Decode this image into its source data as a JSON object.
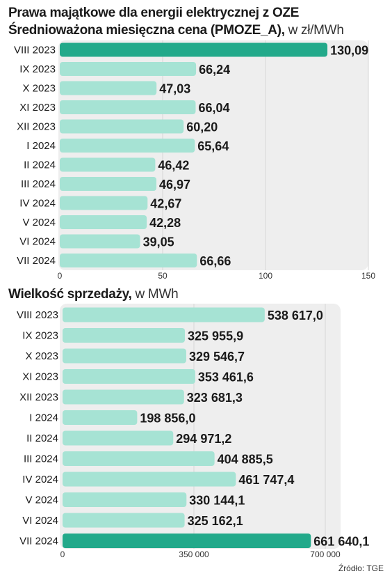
{
  "chart_data": [
    {
      "type": "bar",
      "orientation": "horizontal",
      "title": "Prawa majątkowe dla energii elektrycznej z OZE",
      "subtitle": "Średnioważona miesięczna cena (PMOZE_A),",
      "unit": "w  zł/MWh",
      "categories": [
        "VIII 2023",
        "IX 2023",
        "X 2023",
        "XI 2023",
        "XII 2023",
        "I 2024",
        "II 2024",
        "III 2024",
        "IV 2024",
        "V 2024",
        "VI 2024",
        "VII 2024"
      ],
      "values": [
        130.09,
        66.24,
        47.03,
        66.04,
        60.2,
        65.64,
        46.42,
        46.97,
        42.67,
        42.28,
        39.05,
        66.66
      ],
      "value_labels": [
        "130,09",
        "66,24",
        "47,03",
        "66,04",
        "60,20",
        "65,64",
        "46,42",
        "46,97",
        "42,67",
        "42,28",
        "39,05",
        "66,66"
      ],
      "xlim": [
        0,
        150
      ],
      "ticks": [
        "0",
        "50",
        "100",
        "150"
      ],
      "highlight": [
        0
      ]
    },
    {
      "type": "bar",
      "orientation": "horizontal",
      "title": "Wielkość sprzedaży,",
      "unit": "w MWh",
      "categories": [
        "VIII 2023",
        "IX 2023",
        "X 2023",
        "XI 2023",
        "XII 2023",
        "I 2024",
        "II 2024",
        "III 2024",
        "IV 2024",
        "V 2024",
        "VI 2024",
        "VII 2024"
      ],
      "values": [
        538617.0,
        325955.9,
        329546.7,
        353461.6,
        323681.3,
        198856.0,
        294971.2,
        404885.5,
        461747.4,
        330144.1,
        325162.1,
        661640.1
      ],
      "value_labels": [
        "538 617,0",
        "325 955,9",
        "329 546,7",
        "353 461,6",
        "323 681,3",
        "198 856,0",
        "294 971,2",
        "404 885,5",
        "461 747,4",
        "330 144,1",
        "325 162,1",
        "661 640,1"
      ],
      "xlim": [
        0,
        700000
      ],
      "ticks": [
        "0",
        "350 000",
        "700 000"
      ],
      "highlight": [
        11
      ]
    }
  ],
  "colors": {
    "bar": "#a6e3d4",
    "highlight": "#22a98a",
    "panel": "#eeeeee",
    "grid": "#d6d6d6"
  },
  "source": "Źródło: TGE"
}
